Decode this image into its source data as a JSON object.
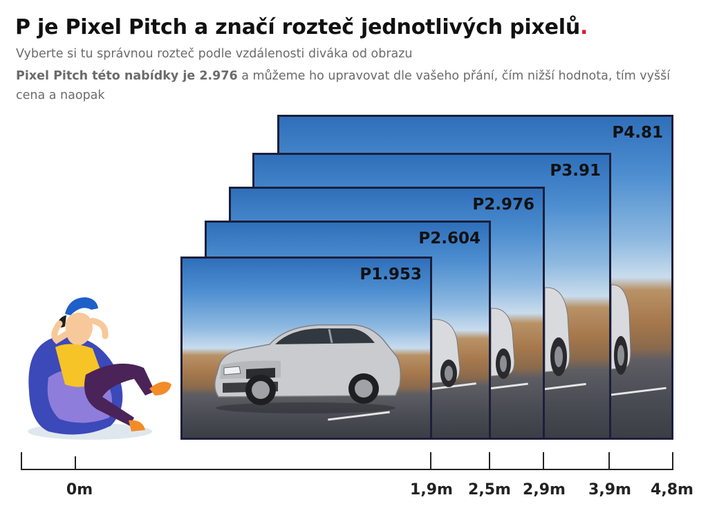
{
  "header": {
    "title": "P je Pixel Pitch a značí rozteč jednotlivých pixelů",
    "title_dot": ".",
    "subtitle": "Vyberte si tu správnou rozteč podle vzdálenosti diváka od obrazu",
    "info_bold": "Pixel Pitch této nabídky je 2.976",
    "info_rest": " a můžeme ho upravovat dle vašeho přání, čím nižší hodnota, tím vyšší cena a naopak"
  },
  "screens": [
    {
      "label": "P4.81"
    },
    {
      "label": "P3.91"
    },
    {
      "label": "P2.976"
    },
    {
      "label": "P2.604"
    },
    {
      "label": "P1.953"
    }
  ],
  "distance_axis": {
    "ticks": [
      {
        "label": ""
      },
      {
        "label": "0m"
      },
      {
        "label": "1,9m"
      },
      {
        "label": "2,5m"
      },
      {
        "label": "2,9m"
      },
      {
        "label": "3,9m"
      },
      {
        "label": "4,8m"
      }
    ]
  },
  "colors": {
    "accent_red": "#e0192b",
    "frame": "#1c1f3a",
    "text_gray": "#6b6b6b"
  },
  "illustration": {
    "person_icon": "relaxing-person-on-beanbag-icon",
    "car_icon": "car-icon"
  }
}
